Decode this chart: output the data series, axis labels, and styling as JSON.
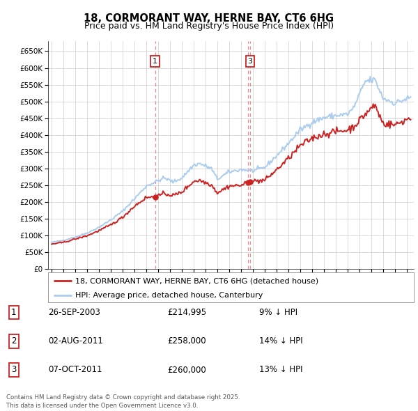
{
  "title1": "18, CORMORANT WAY, HERNE BAY, CT6 6HG",
  "title2": "Price paid vs. HM Land Registry's House Price Index (HPI)",
  "ylim": [
    0,
    680000
  ],
  "yticks": [
    0,
    50000,
    100000,
    150000,
    200000,
    250000,
    300000,
    350000,
    400000,
    450000,
    500000,
    550000,
    600000,
    650000
  ],
  "hpi_color": "#aaccee",
  "price_color": "#cc2222",
  "vline_color": "#ee8888",
  "legend_price_label": "18, CORMORANT WAY, HERNE BAY, CT6 6HG (detached house)",
  "legend_hpi_label": "HPI: Average price, detached house, Canterbury",
  "table_entries": [
    {
      "num": "1",
      "date": "26-SEP-2003",
      "price": "£214,995",
      "note": "9% ↓ HPI"
    },
    {
      "num": "2",
      "date": "02-AUG-2011",
      "price": "£258,000",
      "note": "14% ↓ HPI"
    },
    {
      "num": "3",
      "date": "07-OCT-2011",
      "price": "£260,000",
      "note": "13% ↓ HPI"
    }
  ],
  "footnote": "Contains HM Land Registry data © Crown copyright and database right 2025.\nThis data is licensed under the Open Government Licence v3.0.",
  "background_color": "#ffffff",
  "grid_color": "#cccccc",
  "trans_years": [
    2003.737,
    2011.586,
    2011.769
  ],
  "trans_prices": [
    214995,
    258000,
    260000
  ],
  "show_label": [
    true,
    false,
    true
  ],
  "label_nums": [
    "1",
    "2",
    "3"
  ],
  "hpi_anchors_x": [
    1995.0,
    1996.0,
    1997.0,
    1998.0,
    1999.0,
    2000.0,
    2001.0,
    2002.0,
    2003.0,
    2004.5,
    2005.3,
    2006.0,
    2007.0,
    2007.5,
    2008.5,
    2009.0,
    2010.0,
    2011.0,
    2012.0,
    2013.0,
    2014.0,
    2015.0,
    2016.0,
    2017.0,
    2018.0,
    2019.0,
    2020.0,
    2020.5,
    2021.5,
    2022.3,
    2023.0,
    2024.0,
    2025.2
  ],
  "hpi_anchors_y": [
    80000,
    86000,
    96000,
    108000,
    125000,
    147000,
    173000,
    210000,
    248000,
    272000,
    260000,
    272000,
    310000,
    315000,
    300000,
    268000,
    290000,
    297000,
    293000,
    303000,
    338000,
    375000,
    415000,
    438000,
    452000,
    458000,
    462000,
    480000,
    560000,
    565000,
    510000,
    495000,
    510000
  ],
  "price_anchors_x": [
    1995.0,
    1996.0,
    1997.0,
    1998.0,
    1999.0,
    2000.0,
    2001.0,
    2002.0,
    2003.0,
    2003.737,
    2004.5,
    2005.3,
    2006.0,
    2007.0,
    2007.5,
    2008.5,
    2009.0,
    2010.0,
    2011.0,
    2011.586,
    2011.769,
    2012.0,
    2013.0,
    2014.0,
    2015.0,
    2016.0,
    2017.0,
    2018.0,
    2019.0,
    2020.0,
    2020.5,
    2021.5,
    2022.3,
    2023.0,
    2024.0,
    2025.2
  ],
  "price_anchors_y": [
    75000,
    80000,
    90000,
    100000,
    115000,
    132000,
    155000,
    188000,
    214000,
    214995,
    225000,
    220000,
    230000,
    262000,
    265000,
    252000,
    228000,
    248000,
    250000,
    258000,
    260000,
    262000,
    265000,
    296000,
    330000,
    368000,
    390000,
    403000,
    410000,
    415000,
    425000,
    462000,
    490000,
    435000,
    430000,
    450000
  ]
}
